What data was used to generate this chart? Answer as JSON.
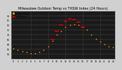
{
  "title": "Milwaukee Outdoor Temp vs THSW Index (24 Hours)",
  "background_color": "#d0d0d0",
  "plot_bg_color": "#1a1a1a",
  "hours": [
    0,
    1,
    2,
    3,
    4,
    5,
    6,
    7,
    8,
    9,
    10,
    11,
    12,
    13,
    14,
    15,
    16,
    17,
    18,
    19,
    20,
    21,
    22,
    23
  ],
  "temp_values": [
    56,
    54,
    53,
    52,
    51,
    51,
    52,
    54,
    58,
    64,
    70,
    74,
    78,
    80,
    81,
    80,
    78,
    75,
    70,
    66,
    63,
    60,
    58,
    57
  ],
  "thsw_values": [
    null,
    null,
    null,
    null,
    null,
    null,
    null,
    null,
    null,
    65,
    74,
    80,
    84,
    87,
    86,
    83,
    78,
    null,
    null,
    null,
    null,
    null,
    null,
    null
  ],
  "temp_color": "#ff8800",
  "thsw_color": "#cc0000",
  "grid_color": "#555555",
  "tick_color": "#000000",
  "title_color": "#000000",
  "ylim": [
    45,
    95
  ],
  "xlim": [
    -0.5,
    23.5
  ],
  "y_ticks": [
    50,
    55,
    60,
    65,
    70,
    75,
    80,
    85,
    90
  ],
  "x_ticks": [
    0,
    1,
    2,
    3,
    4,
    5,
    6,
    7,
    8,
    9,
    10,
    11,
    12,
    13,
    14,
    15,
    16,
    17,
    18,
    19,
    20,
    21,
    22,
    23
  ],
  "x_tick_labels": [
    "0",
    "1",
    "2",
    "3",
    "4",
    "5",
    "6",
    "7",
    "8",
    "9",
    "10",
    "11",
    "12",
    "13",
    "14",
    "15",
    "16",
    "17",
    "18",
    "19",
    "20",
    "21",
    "22",
    "23"
  ],
  "dashed_cols": [
    4,
    8,
    12,
    16,
    20
  ],
  "title_fontsize": 3.5,
  "tick_fontsize": 2.2,
  "legend_labels": [
    "Outdoor Temp",
    "THSW Index"
  ],
  "legend_colors": [
    "#ff8800",
    "#cc0000"
  ],
  "dot_size": 1.5,
  "thsw_linewidth": 1.2
}
